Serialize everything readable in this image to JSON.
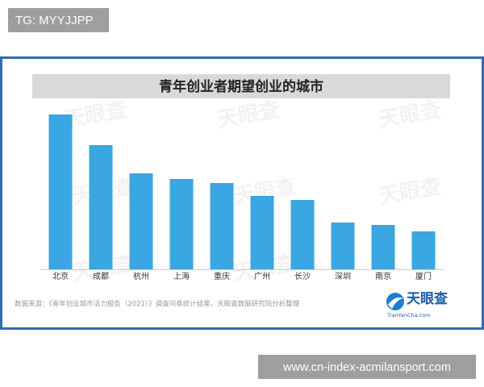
{
  "corner_label": "TG: MYYJJPP",
  "watermark": "天眼查",
  "chart_data": {
    "type": "bar",
    "title": "青年创业者期望创业的城市",
    "categories": [
      "北京",
      "成都",
      "杭州",
      "上海",
      "重庆",
      "广州",
      "长沙",
      "深圳",
      "南京",
      "厦门"
    ],
    "values": [
      192,
      154,
      119,
      112,
      107,
      91,
      86,
      58,
      55,
      47
    ],
    "color": "#3aa6e2"
  },
  "source": "数据来源：《青年创业城市活力报告（2021）》调查问卷统计结果，天眼查数据研究院分析整理",
  "logo": {
    "name": "天眼查",
    "domain": "TianYanCha.com"
  },
  "footer_url": "www.cn-index-acmilansport.com"
}
